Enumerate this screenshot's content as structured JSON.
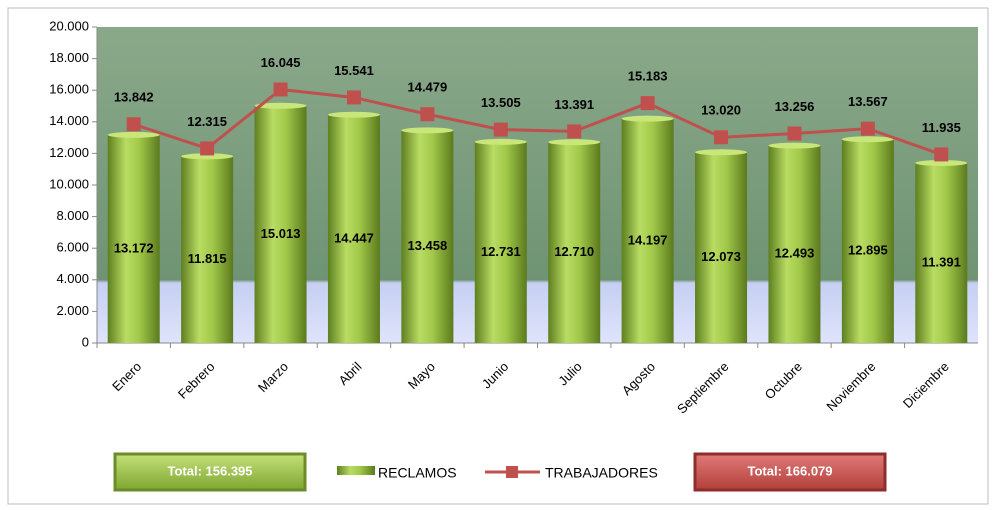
{
  "chart_data": {
    "type": "combo",
    "categories": [
      "Enero",
      "Febrero",
      "Marzo",
      "Abril",
      "Mayo",
      "Junio",
      "Julio",
      "Agosto",
      "Septiembre",
      "Octubre",
      "Noviembre",
      "Diciembre"
    ],
    "series": [
      {
        "name": "RECLAMOS",
        "type": "bar",
        "color": "#8db33a",
        "values": [
          13172,
          11815,
          15013,
          14447,
          13458,
          12731,
          12710,
          14197,
          12073,
          12493,
          12895,
          11391
        ],
        "value_labels": [
          "13.172",
          "11.815",
          "15.013",
          "14.447",
          "13.458",
          "12.731",
          "12.710",
          "14.197",
          "12.073",
          "12.493",
          "12.895",
          "11.391"
        ]
      },
      {
        "name": "TRABAJADORES",
        "type": "line",
        "color": "#c0504d",
        "values": [
          13842,
          12315,
          16045,
          15541,
          14479,
          13505,
          13391,
          15183,
          13020,
          13256,
          13567,
          11935
        ],
        "value_labels": [
          "13.842",
          "12.315",
          "16.045",
          "15.541",
          "14.479",
          "13.505",
          "13.391",
          "15.183",
          "13.020",
          "13.256",
          "13.567",
          "11.935"
        ]
      }
    ],
    "ylim": [
      0,
      20000
    ],
    "yticks": [
      0,
      {
        "value": 2000,
        "label": "2.000"
      },
      {
        "value": 4000,
        "label": "4.000"
      },
      {
        "value": 6000,
        "label": "6.000"
      },
      {
        "value": 8000,
        "label": "8.000"
      },
      {
        "value": 10000,
        "label": "10.000"
      },
      {
        "value": 12000,
        "label": "12.000"
      },
      {
        "value": 14000,
        "label": "14.000"
      },
      {
        "value": 16000,
        "label": "16.000"
      },
      {
        "value": 18000,
        "label": "18.000"
      },
      {
        "value": 20000,
        "label": "20.000"
      }
    ],
    "annotations": [
      "Total: 156.395",
      "Total: 166.079"
    ],
    "legend": "bottom"
  }
}
